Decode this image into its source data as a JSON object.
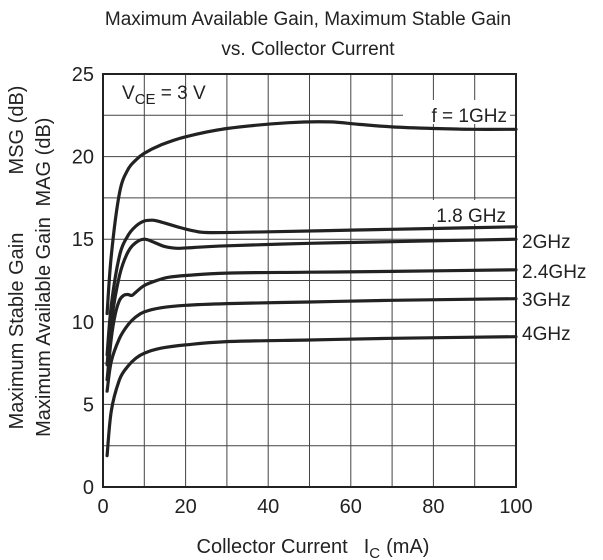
{
  "chart_data": {
    "type": "line",
    "title": "Maximum Available Gain, Maximum Stable Gain",
    "subtitle": "vs. Collector Current",
    "xlabel_main": "Collector Current",
    "xlabel_symbol": "I",
    "xlabel_subscript": "C",
    "xlabel_unit": "(mA)",
    "ylabel_outer_1": "Maximum Stable Gain",
    "ylabel_outer_2": "MSG (dB)",
    "ylabel_inner_1": "Maximum Available Gain",
    "ylabel_inner_2": "MAG (dB)",
    "xlim": [
      0,
      100
    ],
    "ylim": [
      0,
      25
    ],
    "xticks": [
      "0",
      "20",
      "40",
      "60",
      "80",
      "100"
    ],
    "yticks": [
      "0",
      "5",
      "10",
      "15",
      "20",
      "25"
    ],
    "grid": true,
    "condition": {
      "symbol": "V",
      "subscript": "CE",
      "rest": " = 3 V"
    },
    "series": [
      {
        "name": "f = 1GHz",
        "x": [
          1,
          2,
          4,
          6,
          8,
          10,
          14,
          20,
          30,
          45,
          55,
          62,
          70,
          80,
          90,
          100
        ],
        "y": [
          10.5,
          14.0,
          17.8,
          19.2,
          19.8,
          20.2,
          20.7,
          21.2,
          21.7,
          22.05,
          22.1,
          21.95,
          21.8,
          21.7,
          21.65,
          21.65
        ]
      },
      {
        "name": "1.8 GHz",
        "x": [
          1,
          2,
          4,
          6,
          8,
          10,
          12,
          14,
          18,
          22,
          26,
          40,
          60,
          80,
          100
        ],
        "y": [
          8.0,
          11.0,
          14.0,
          15.2,
          15.8,
          16.1,
          16.15,
          16.05,
          15.75,
          15.5,
          15.4,
          15.45,
          15.55,
          15.65,
          15.75
        ]
      },
      {
        "name": "2GHz",
        "x": [
          1,
          2,
          4,
          6,
          8,
          10,
          12,
          15,
          18,
          22,
          30,
          50,
          70,
          100
        ],
        "y": [
          7.4,
          10.0,
          12.8,
          14.2,
          14.8,
          15.0,
          14.85,
          14.55,
          14.45,
          14.5,
          14.6,
          14.75,
          14.85,
          15.0
        ]
      },
      {
        "name": "2.4GHz",
        "x": [
          1,
          2,
          3,
          4,
          5,
          6,
          7,
          8,
          10,
          13,
          16,
          20,
          30,
          50,
          70,
          100
        ],
        "y": [
          6.5,
          9.0,
          10.5,
          11.3,
          11.6,
          11.65,
          11.6,
          11.8,
          12.2,
          12.5,
          12.7,
          12.8,
          12.95,
          13.0,
          13.05,
          13.15
        ]
      },
      {
        "name": "3GHz",
        "x": [
          1,
          2,
          4,
          6,
          8,
          10,
          14,
          20,
          30,
          50,
          70,
          100
        ],
        "y": [
          5.8,
          7.6,
          9.0,
          9.8,
          10.3,
          10.6,
          10.85,
          11.0,
          11.1,
          11.2,
          11.3,
          11.4
        ]
      },
      {
        "name": "4GHz",
        "x": [
          1,
          2,
          4,
          6,
          8,
          10,
          14,
          20,
          30,
          50,
          70,
          100
        ],
        "y": [
          1.9,
          4.6,
          6.5,
          7.3,
          7.8,
          8.1,
          8.4,
          8.6,
          8.8,
          8.9,
          9.0,
          9.1
        ]
      }
    ],
    "colors": {
      "curve": "#222222",
      "grid": "#444444",
      "frame": "#222222",
      "background": "#ffffff"
    }
  }
}
